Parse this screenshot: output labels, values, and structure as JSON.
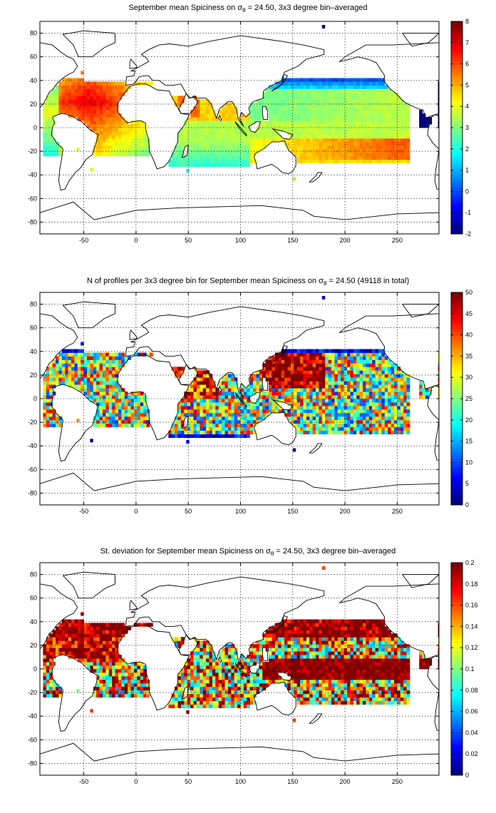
{
  "panels": [
    {
      "title_pre": "September mean Spiciness on σ",
      "title_sub": "θ",
      "title_post": " = 24.50, 3x3 degree bin–averaged"
    },
    {
      "title_pre": "N of profiles per 3x3 degree bin for September mean Spiciness on σ",
      "title_sub": "θ",
      "title_post": " = 24.50 (49118 in total)"
    },
    {
      "title_pre": "St. deviation for September mean Spiciness on σ",
      "title_sub": "θ",
      "title_post": " = 24.50, 3x3 degree bin–averaged"
    }
  ],
  "chart_data": [
    {
      "type": "heatmap",
      "title": "September mean Spiciness on σθ = 24.50, 3x3 degree bin–averaged",
      "xlim": [
        -92,
        290
      ],
      "ylim": [
        -90,
        90
      ],
      "x_ticks": [
        "-50",
        "0",
        "50",
        "100",
        "150",
        "200",
        "250"
      ],
      "y_ticks": [
        "80",
        "60",
        "40",
        "20",
        "0",
        "-20",
        "-40",
        "-60",
        "-80"
      ],
      "colorbar": {
        "min": -2,
        "max": 8,
        "ticks": [
          "8",
          "7",
          "6",
          "5",
          "4",
          "3",
          "2",
          "1",
          "0",
          "-1",
          "-2"
        ]
      },
      "grid": true,
      "bin_size_deg": 3
    },
    {
      "type": "heatmap",
      "title": "N of profiles per 3x3 degree bin for September mean Spiciness on σθ = 24.50 (49118 in total)",
      "xlim": [
        -92,
        290
      ],
      "ylim": [
        -90,
        90
      ],
      "x_ticks": [
        "-50",
        "0",
        "50",
        "100",
        "150",
        "200",
        "250"
      ],
      "y_ticks": [
        "80",
        "60",
        "40",
        "20",
        "0",
        "-20",
        "-40",
        "-60",
        "-80"
      ],
      "colorbar": {
        "min": 0,
        "max": 50,
        "ticks": [
          "50",
          "45",
          "40",
          "35",
          "30",
          "25",
          "20",
          "15",
          "10",
          "5",
          "0"
        ]
      },
      "grid": true,
      "bin_size_deg": 3
    },
    {
      "type": "heatmap",
      "title": "St. deviation for September mean Spiciness on σθ = 24.50, 3x3 degree bin–averaged",
      "xlim": [
        -92,
        290
      ],
      "ylim": [
        -90,
        90
      ],
      "x_ticks": [
        "-50",
        "0",
        "50",
        "100",
        "150",
        "200",
        "250"
      ],
      "y_ticks": [
        "80",
        "60",
        "40",
        "20",
        "0",
        "-20",
        "-40",
        "-60",
        "-80"
      ],
      "colorbar": {
        "min": 0,
        "max": 0.2,
        "ticks": [
          "0.2",
          "0.18",
          "0.16",
          "0.14",
          "0.12",
          "0.1",
          "0.08",
          "0.06",
          "0.04",
          "0.02",
          "0"
        ]
      },
      "grid": true,
      "bin_size_deg": 3
    }
  ]
}
